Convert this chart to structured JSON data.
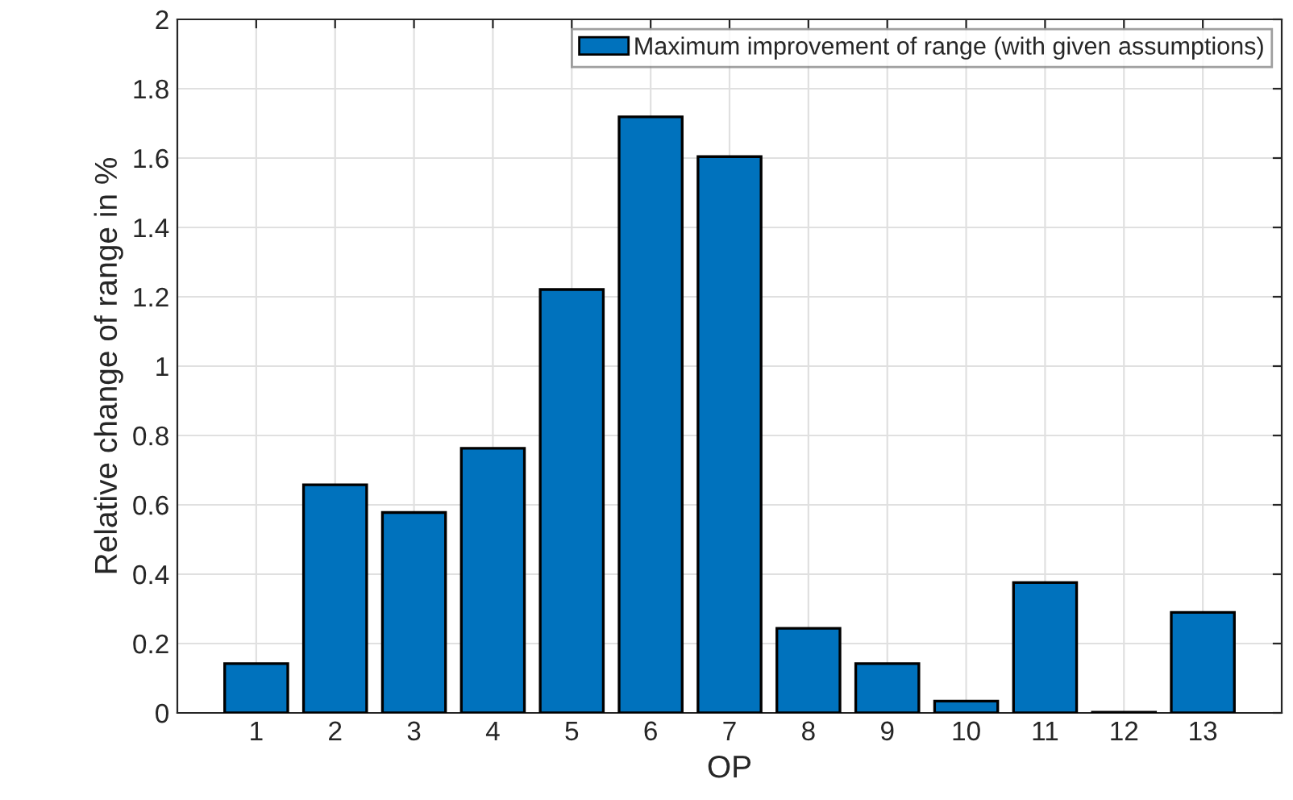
{
  "chart_data": {
    "type": "bar",
    "xlabel": "OP",
    "ylabel": "Relative change of range in %",
    "categories": [
      "1",
      "2",
      "3",
      "4",
      "5",
      "6",
      "7",
      "8",
      "9",
      "10",
      "11",
      "12",
      "13"
    ],
    "series": [
      {
        "name": "Maximum improvement of range (with given assumptions)",
        "color": "#0072bd",
        "values": [
          0.142,
          0.658,
          0.578,
          0.763,
          1.221,
          1.719,
          1.604,
          0.244,
          0.142,
          0.034,
          0.376,
          0.002,
          0.29
        ]
      }
    ],
    "ylim": [
      0,
      2
    ],
    "yticks": [
      0,
      {
        "value": 0.2,
        "label": "0.2"
      },
      {
        "value": 0.4,
        "label": "0.4"
      },
      {
        "value": 0.6,
        "label": "0.6"
      },
      {
        "value": 0.8,
        "label": "0.8"
      },
      1,
      {
        "value": 1.2,
        "label": "1.2"
      },
      {
        "value": 1.4,
        "label": "1.4"
      },
      {
        "value": 1.6,
        "label": "1.6"
      },
      {
        "value": 1.8,
        "label": "1.8"
      },
      2
    ],
    "grid": true,
    "legend": "top right"
  }
}
